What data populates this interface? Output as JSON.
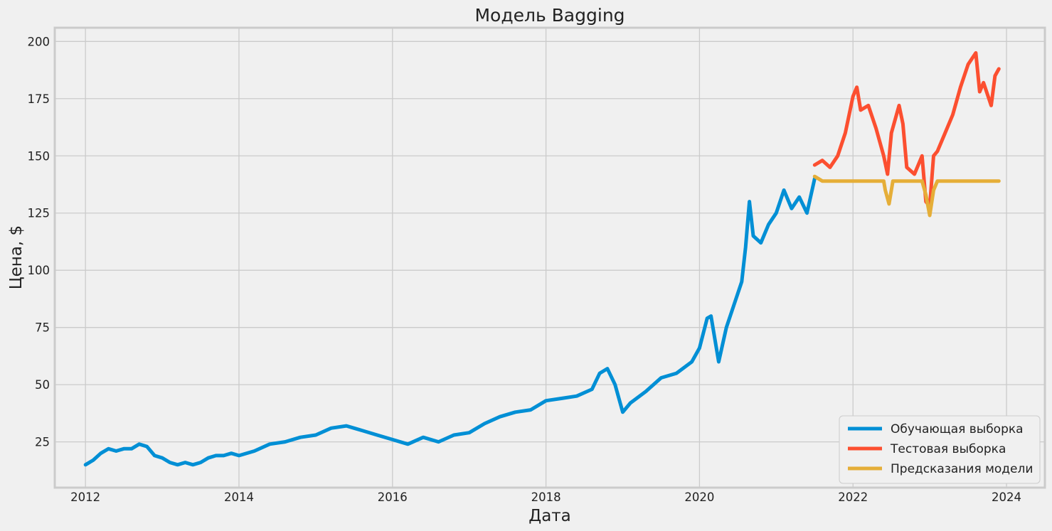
{
  "chart_data": {
    "type": "line",
    "title": "Модель Bagging",
    "xlabel": "Дата",
    "ylabel": "Цена, $",
    "xlim": [
      2011.6,
      2024.5
    ],
    "ylim": [
      5,
      206
    ],
    "xticks": [
      2012,
      2014,
      2016,
      2018,
      2020,
      2022,
      2024
    ],
    "xtick_labels": [
      "2012",
      "2014",
      "2016",
      "2018",
      "2020",
      "2022",
      "2024"
    ],
    "yticks": [
      25,
      50,
      75,
      100,
      125,
      150,
      175,
      200
    ],
    "ytick_labels": [
      "25",
      "50",
      "75",
      "100",
      "125",
      "150",
      "175",
      "200"
    ],
    "grid": true,
    "legend_position": "bottom-right",
    "series": [
      {
        "name": "Обучающая выборка",
        "color": "#008fd5",
        "x": [
          2012.0,
          2012.1,
          2012.2,
          2012.3,
          2012.4,
          2012.5,
          2012.6,
          2012.7,
          2012.8,
          2012.9,
          2013.0,
          2013.1,
          2013.2,
          2013.3,
          2013.4,
          2013.5,
          2013.6,
          2013.7,
          2013.8,
          2013.9,
          2014.0,
          2014.2,
          2014.4,
          2014.6,
          2014.8,
          2015.0,
          2015.2,
          2015.4,
          2015.5,
          2015.6,
          2015.8,
          2016.0,
          2016.2,
          2016.4,
          2016.6,
          2016.8,
          2017.0,
          2017.2,
          2017.4,
          2017.6,
          2017.8,
          2018.0,
          2018.2,
          2018.4,
          2018.6,
          2018.7,
          2018.8,
          2018.9,
          2019.0,
          2019.1,
          2019.3,
          2019.5,
          2019.7,
          2019.9,
          2020.0,
          2020.1,
          2020.15,
          2020.2,
          2020.25,
          2020.35,
          2020.45,
          2020.55,
          2020.6,
          2020.65,
          2020.7,
          2020.8,
          2020.9,
          2021.0,
          2021.1,
          2021.2,
          2021.3,
          2021.4,
          2021.5
        ],
        "values": [
          15,
          17,
          20,
          22,
          21,
          22,
          22,
          24,
          23,
          19,
          18,
          16,
          15,
          16,
          15,
          16,
          18,
          19,
          19,
          20,
          19,
          21,
          24,
          25,
          27,
          28,
          31,
          32,
          31,
          30,
          28,
          26,
          24,
          27,
          25,
          28,
          29,
          33,
          36,
          38,
          39,
          43,
          44,
          45,
          48,
          55,
          57,
          50,
          38,
          42,
          47,
          53,
          55,
          60,
          66,
          79,
          80,
          70,
          60,
          75,
          85,
          95,
          110,
          130,
          115,
          112,
          120,
          125,
          135,
          127,
          132,
          125,
          140
        ]
      },
      {
        "name": "Тестовая выборка",
        "color": "#fc4f30",
        "x": [
          2021.5,
          2021.6,
          2021.7,
          2021.8,
          2021.9,
          2022.0,
          2022.05,
          2022.1,
          2022.2,
          2022.3,
          2022.4,
          2022.45,
          2022.5,
          2022.6,
          2022.65,
          2022.7,
          2022.8,
          2022.9,
          2022.95,
          2023.0,
          2023.05,
          2023.1,
          2023.2,
          2023.3,
          2023.4,
          2023.5,
          2023.6,
          2023.65,
          2023.7,
          2023.8,
          2023.85,
          2023.9
        ],
        "values": [
          146,
          148,
          145,
          150,
          160,
          176,
          180,
          170,
          172,
          162,
          150,
          142,
          160,
          172,
          164,
          145,
          142,
          150,
          130,
          128,
          150,
          152,
          160,
          168,
          180,
          190,
          195,
          178,
          182,
          172,
          185,
          188
        ]
      },
      {
        "name": "Предсказания модели",
        "color": "#e5ae38",
        "x": [
          2021.5,
          2021.6,
          2021.8,
          2022.0,
          2022.2,
          2022.4,
          2022.42,
          2022.47,
          2022.52,
          2022.6,
          2022.8,
          2022.9,
          2022.95,
          2023.0,
          2023.05,
          2023.1,
          2023.3,
          2023.5,
          2023.7,
          2023.9
        ],
        "values": [
          141,
          139,
          139,
          139,
          139,
          139,
          135,
          129,
          139,
          139,
          139,
          139,
          133,
          124,
          135,
          139,
          139,
          139,
          139,
          139
        ]
      }
    ]
  }
}
